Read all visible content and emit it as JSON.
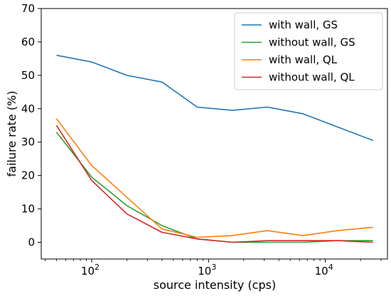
{
  "chart_data": {
    "type": "line",
    "xlabel": "source intensity (cps)",
    "ylabel": "failure rate (%)",
    "xscale": "log",
    "xlim": [
      37,
      34000
    ],
    "ylim": [
      -5,
      70
    ],
    "yticks": [
      0,
      10,
      20,
      30,
      40,
      50,
      60,
      70
    ],
    "xticks": [
      {
        "value": 100,
        "base": "10",
        "exp": "2"
      },
      {
        "value": 1000,
        "base": "10",
        "exp": "3"
      },
      {
        "value": 10000,
        "base": "10",
        "exp": "4"
      }
    ],
    "grid": false,
    "legend_position": "top-right",
    "x": [
      50,
      100,
      200,
      400,
      800,
      1600,
      3200,
      6400,
      12800,
      25600
    ],
    "series": [
      {
        "name": "with wall, GS",
        "color": "#1f77b4",
        "values": [
          56,
          54,
          50,
          48,
          40.5,
          39.5,
          40.5,
          38.5,
          34.5,
          30.5
        ]
      },
      {
        "name": "without wall, GS",
        "color": "#2ca02c",
        "values": [
          33,
          19.5,
          11,
          5,
          1,
          0,
          0,
          0,
          0.5,
          0.5
        ]
      },
      {
        "name": "with wall, QL",
        "color": "#ff7f0e",
        "values": [
          37,
          23,
          13.5,
          4,
          1.5,
          2,
          3.5,
          2,
          3.5,
          4.5
        ]
      },
      {
        "name": "without wall, QL",
        "color": "#d62728",
        "values": [
          35,
          18.5,
          8.5,
          3,
          1,
          0,
          0.5,
          0.5,
          0.5,
          0
        ]
      }
    ]
  }
}
